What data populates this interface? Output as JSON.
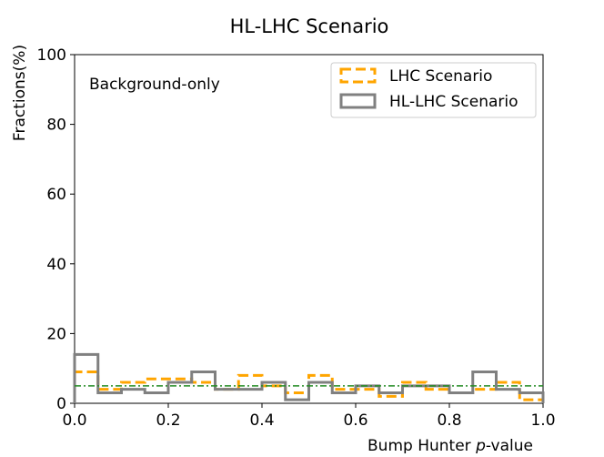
{
  "chart_data": {
    "type": "step-histogram",
    "title": "HL-LHC Scenario",
    "xlabel_prefix": "Bump Hunter ",
    "xlabel_italic": "p",
    "xlabel_suffix": "-value",
    "ylabel": "Fractions(%)",
    "annotation": "Background-only",
    "xlim": [
      0.0,
      1.0
    ],
    "ylim": [
      0,
      100
    ],
    "xticks": [
      0.0,
      0.2,
      0.4,
      0.6,
      0.8,
      1.0
    ],
    "xtick_labels": [
      "0.0",
      "0.2",
      "0.4",
      "0.6",
      "0.8",
      "1.0"
    ],
    "yticks": [
      0,
      20,
      40,
      60,
      80,
      100
    ],
    "ytick_labels": [
      "0",
      "20",
      "40",
      "60",
      "80",
      "100"
    ],
    "bin_edges": [
      0.0,
      0.05,
      0.1,
      0.15,
      0.2,
      0.25,
      0.3,
      0.35,
      0.4,
      0.45,
      0.5,
      0.55,
      0.6,
      0.65,
      0.7,
      0.75,
      0.8,
      0.85,
      0.9,
      0.95,
      1.0
    ],
    "reference_line": {
      "y": 5,
      "color": "#228b22",
      "style": "dash-dot"
    },
    "legend_position": "top-right",
    "series": [
      {
        "name": "LHC Scenario",
        "color": "#ffa500",
        "style": "dashed",
        "values": [
          9,
          4,
          6,
          7,
          7,
          6,
          4,
          8,
          5,
          3,
          8,
          4,
          4,
          2,
          6,
          4,
          3,
          4,
          6,
          1
        ]
      },
      {
        "name": "HL-LHC Scenario",
        "color": "#808080",
        "style": "solid",
        "values": [
          14,
          3,
          4,
          3,
          6,
          9,
          4,
          4,
          6,
          1,
          6,
          3,
          5,
          3,
          5,
          5,
          3,
          9,
          4,
          3
        ]
      }
    ]
  }
}
